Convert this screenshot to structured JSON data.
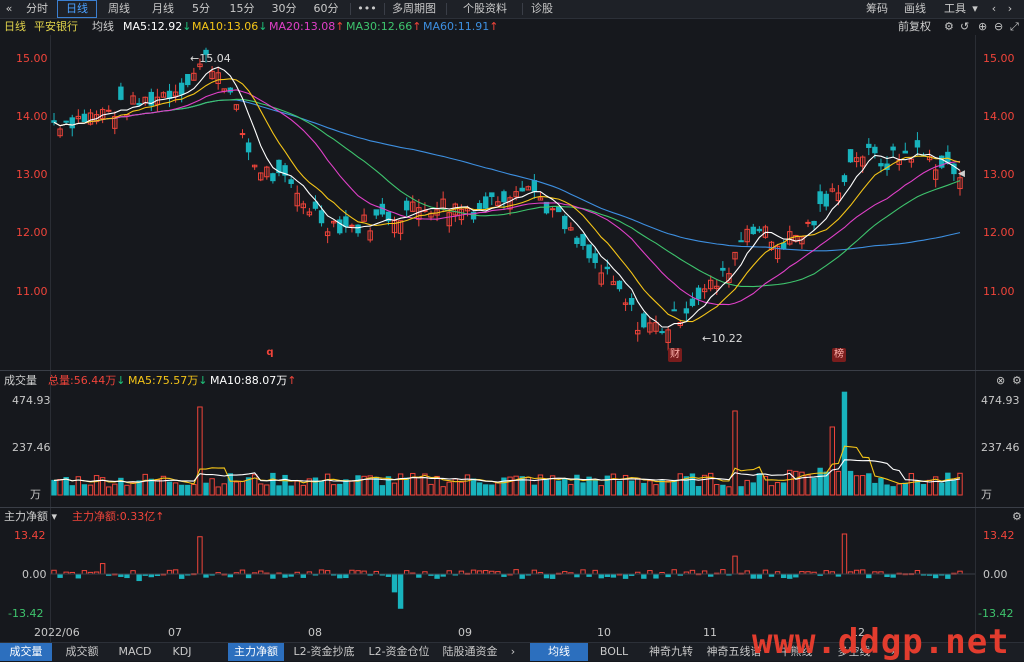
{
  "toolbar": {
    "back": "«",
    "periods": [
      "分时",
      "日线",
      "周线",
      "月线",
      "5分",
      "15分",
      "30分",
      "60分"
    ],
    "more": "•••",
    "multi_period": "多周期图",
    "stock_info": "个股资料",
    "diagnose": "诊股",
    "right": [
      "筹码",
      "画线",
      "工具"
    ]
  },
  "info": {
    "period": "日线",
    "stock_name": "平安银行",
    "ma_label": "均线",
    "ma5": "MA5:12.92",
    "ma10": "MA10:13.06",
    "ma20": "MA20:13.08",
    "ma30": "MA30:12.66",
    "ma60": "MA60:11.91",
    "adjust": "前复权"
  },
  "price_axis": [
    "15.00",
    "14.00",
    "13.00",
    "12.00",
    "11.00"
  ],
  "price_annotations": {
    "high": "15.04",
    "low": "10.22"
  },
  "markers": [
    "q",
    "财",
    "榜"
  ],
  "volume": {
    "title": "成交量",
    "total": "总量:56.44万",
    "ma5": "MA5:75.57万",
    "ma10": "MA10:88.07万",
    "axis": [
      "474.93",
      "237.46",
      "万"
    ]
  },
  "flow": {
    "title": "主力净额",
    "value": "主力净额:0.33亿",
    "axis": [
      "13.42",
      "0.00",
      "-13.42"
    ]
  },
  "dates": [
    "2022/06",
    "07",
    "08",
    "09",
    "10",
    "11",
    "12"
  ],
  "bottom_tabs": [
    "成交量",
    "成交额",
    "MACD",
    "KDJ",
    "主力净额",
    "L2-资金抄底",
    "L2-资金仓位",
    "陆股通资金"
  ],
  "bottom_tabs2": [
    "均线",
    "BOLL",
    "神奇九转",
    "神奇五线谱",
    "牛熊线",
    "多空线"
  ],
  "watermark": "www.ddgp.net",
  "colors": {
    "up": "#f0443a",
    "down": "#18b3bd",
    "ma5": "#ffffff",
    "ma10": "#f5c518",
    "ma20": "#e040c8",
    "ma30": "#3ec46d",
    "ma60": "#3d8fe0"
  },
  "chart_data": {
    "type": "candlestick",
    "title": "平安银行 日线",
    "x": [
      "2022/06",
      "07",
      "08",
      "09",
      "10",
      "11",
      "12"
    ],
    "ylim": [
      10.0,
      15.3
    ],
    "price_points": [
      {
        "x": "2022/06",
        "close": 13.9
      },
      {
        "x": "07",
        "close": 14.6
      },
      {
        "x": "07-high",
        "close": 15.04
      },
      {
        "x": "08",
        "close": 12.8
      },
      {
        "x": "09",
        "close": 12.5
      },
      {
        "x": "10",
        "close": 11.2
      },
      {
        "x": "11-low",
        "close": 10.22
      },
      {
        "x": "12",
        "close": 13.3
      }
    ],
    "volume_ylim": [
      0,
      474.93
    ],
    "flow_ylim": [
      -13.42,
      13.42
    ]
  }
}
